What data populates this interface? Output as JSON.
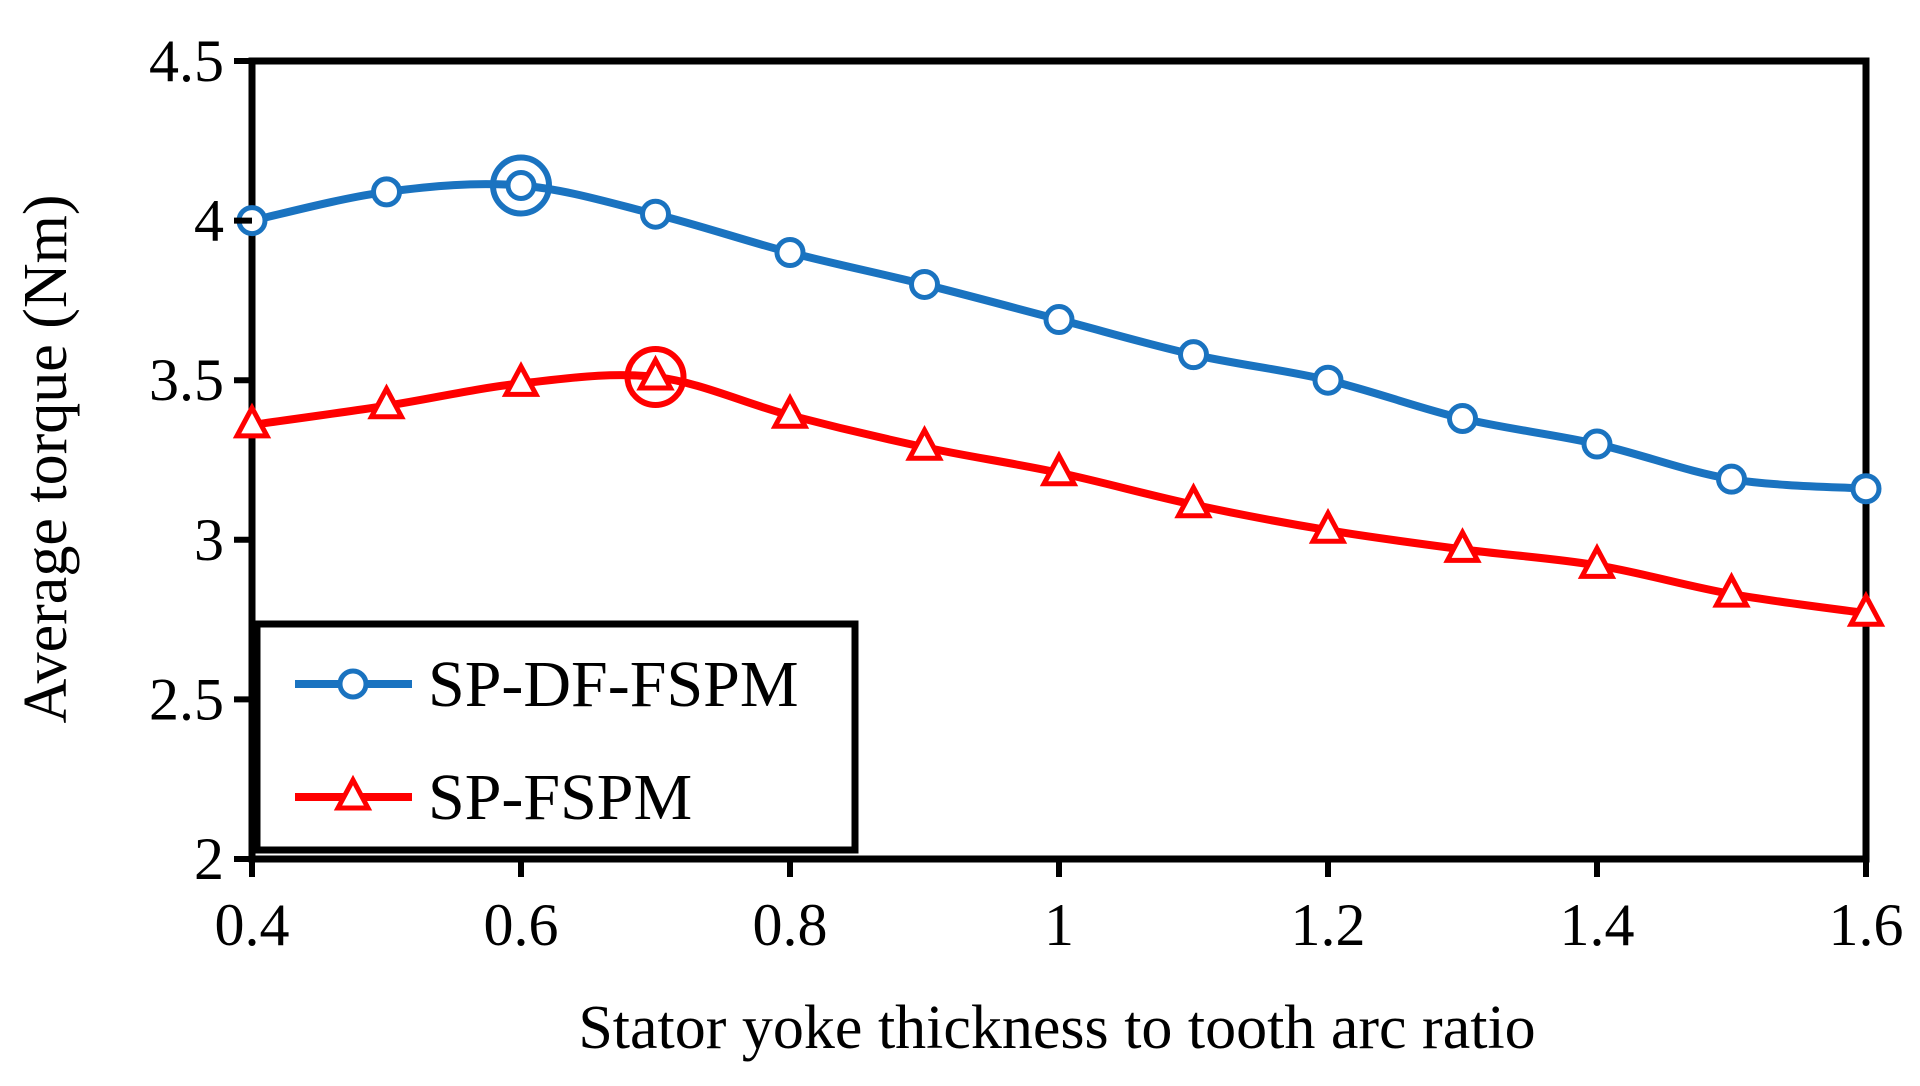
{
  "chart_data": {
    "type": "line",
    "title": "",
    "xlabel": "Stator yoke thickness to tooth arc ratio",
    "ylabel": "Average torque (Nm)",
    "xlim": [
      0.4,
      1.6
    ],
    "ylim": [
      2,
      4.5
    ],
    "x_ticks": [
      0.4,
      0.6,
      0.8,
      1.0,
      1.2,
      1.4,
      1.6
    ],
    "x_tick_labels": [
      "0.4",
      "0.6",
      "0.8",
      "1",
      "1.2",
      "1.4",
      "1.6"
    ],
    "y_ticks": [
      2,
      2.5,
      3,
      3.5,
      4,
      4.5
    ],
    "y_tick_labels": [
      "2",
      "2.5",
      "3",
      "3.5",
      "4",
      "4.5"
    ],
    "grid": false,
    "legend_position": "bottom-left",
    "x": [
      0.4,
      0.5,
      0.6,
      0.7,
      0.8,
      0.9,
      1.0,
      1.1,
      1.2,
      1.3,
      1.4,
      1.5,
      1.6
    ],
    "series": [
      {
        "name": "SP-DF-FSPM",
        "color": "#1a73c0",
        "marker": "circle",
        "values": [
          4.0,
          4.09,
          4.11,
          4.02,
          3.9,
          3.8,
          3.69,
          3.58,
          3.5,
          3.38,
          3.3,
          3.19,
          3.16
        ],
        "highlight_x": 0.6
      },
      {
        "name": "SP-FSPM",
        "color": "#ff0000",
        "marker": "triangle",
        "values": [
          3.36,
          3.42,
          3.49,
          3.51,
          3.39,
          3.29,
          3.21,
          3.11,
          3.03,
          2.97,
          2.92,
          2.83,
          2.77
        ],
        "highlight_x": 0.7
      }
    ]
  }
}
